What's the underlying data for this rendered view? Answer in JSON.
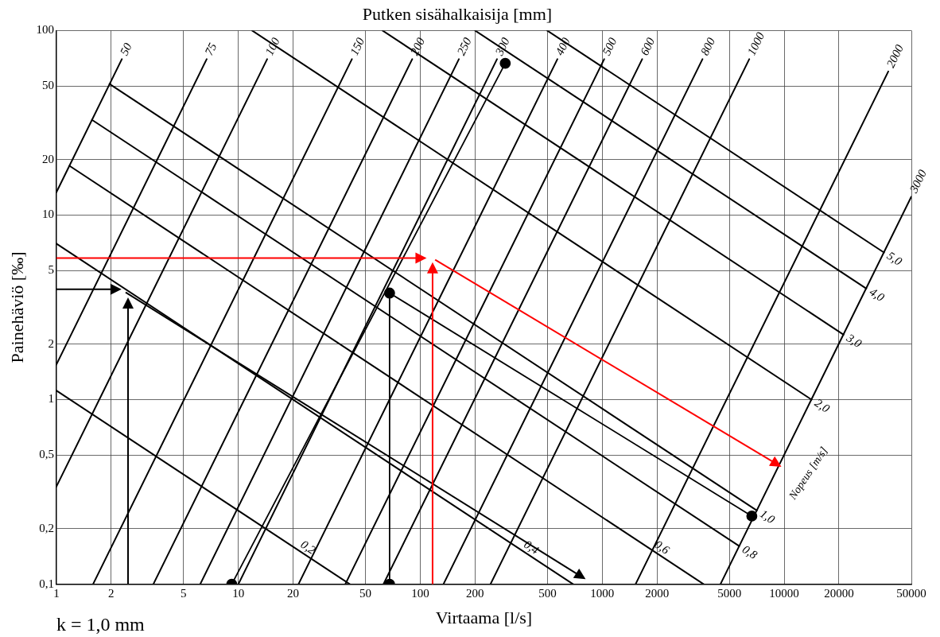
{
  "chart_data": {
    "type": "line",
    "title": "Putken sisähalkaisija [mm]",
    "xlabel": "Virtaama [l/s]",
    "ylabel": "Painehäviö [‰]",
    "log": "xy",
    "grid": true,
    "legend": false,
    "xlim": [
      1,
      50000
    ],
    "ylim": [
      0.1,
      100
    ],
    "xticks": [
      1,
      2,
      5,
      10,
      20,
      50,
      100,
      200,
      500,
      1000,
      2000,
      5000,
      10000,
      20000,
      50000
    ],
    "yticks": [
      {
        "value": 0.1,
        "label": "0,1"
      },
      {
        "value": 0.2,
        "label": "0,2"
      },
      {
        "value": 0.5,
        "label": "0,5"
      },
      1,
      2,
      5,
      10,
      20,
      50,
      100
    ],
    "annotations": [
      "k = 1,0 mm",
      "Nopeus [m/s]"
    ],
    "series": [
      {
        "name": "50",
        "color": "#000000",
        "x": [
          1,
          2.29
        ],
        "values": [
          13.3,
          70
        ]
      },
      {
        "name": "75",
        "color": "#000000",
        "x": [
          1,
          6.7
        ],
        "values": [
          1.55,
          70
        ]
      },
      {
        "name": "100",
        "color": "#000000",
        "x": [
          1,
          14.4
        ],
        "values": [
          0.338,
          70
        ]
      },
      {
        "name": "150",
        "color": "#000000",
        "x": [
          1.59,
          42.1
        ],
        "values": [
          0.1,
          70
        ]
      },
      {
        "name": "200",
        "color": "#000000",
        "x": [
          3.41,
          90.3
        ],
        "values": [
          0.1,
          70
        ]
      },
      {
        "name": "250",
        "color": "#000000",
        "x": [
          6.17,
          163
        ],
        "values": [
          0.1,
          70
        ]
      },
      {
        "name": "300",
        "color": "#000000",
        "x": [
          10,
          264
        ],
        "values": [
          0.1,
          70
        ]
      },
      {
        "name": "400",
        "color": "#000000",
        "x": [
          21.4,
          567
        ],
        "values": [
          0.1,
          70
        ]
      },
      {
        "name": "500",
        "color": "#000000",
        "x": [
          38.7,
          1025
        ],
        "values": [
          0.1,
          70
        ]
      },
      {
        "name": "600",
        "color": "#000000",
        "x": [
          62.7,
          1658
        ],
        "values": [
          0.1,
          70
        ]
      },
      {
        "name": "800",
        "color": "#000000",
        "x": [
          134,
          3556
        ],
        "values": [
          0.1,
          70
        ]
      },
      {
        "name": "1000",
        "color": "#000000",
        "x": [
          243,
          6427
        ],
        "values": [
          0.1,
          70
        ]
      },
      {
        "name": "2000",
        "color": "#000000",
        "x": [
          1524,
          37330
        ],
        "values": [
          0.1,
          60
        ]
      },
      {
        "name": "3000",
        "color": "#000000",
        "x": [
          4462,
          50000
        ],
        "values": [
          0.1,
          12.6
        ]
      },
      {
        "name": "0,2",
        "color": "#000000",
        "x": [
          1,
          41
        ],
        "values": [
          1.12,
          0.1
        ]
      },
      {
        "name": "0,4",
        "color": "#000000",
        "x": [
          1,
          692
        ],
        "values": [
          7,
          0.1
        ]
      },
      {
        "name": "0,6",
        "color": "#000000",
        "x": [
          1.18,
          3610
        ],
        "values": [
          18.5,
          0.1
        ]
      },
      {
        "name": "0,8",
        "color": "#000000",
        "x": [
          1.57,
          5655
        ],
        "values": [
          32.8,
          0.161
        ]
      },
      {
        "name": "1,0",
        "color": "#000000",
        "x": [
          1.96,
          7069
        ],
        "values": [
          51.3,
          0.251
        ]
      },
      {
        "name": "2,0",
        "color": "#000000",
        "x": [
          11.9,
          14137
        ],
        "values": [
          100,
          1
        ]
      },
      {
        "name": "3,0",
        "color": "#000000",
        "x": [
          62,
          21206
        ],
        "values": [
          100,
          2.25
        ]
      },
      {
        "name": "4,0",
        "color": "#000000",
        "x": [
          200,
          28274
        ],
        "values": [
          100,
          4
        ]
      },
      {
        "name": "5,0",
        "color": "#000000",
        "x": [
          498,
          35343
        ],
        "values": [
          100,
          6.27
        ]
      },
      {
        "color": "#000000",
        "marker": "circle",
        "x": [
          9.2,
          293
        ],
        "values": [
          0.1,
          66.4
        ]
      },
      {
        "color": "#000000",
        "marker": "circle",
        "x": [
          67.8,
          67.8,
          6640
        ],
        "values": [
          0.1,
          3.78,
          0.234
        ]
      }
    ]
  }
}
